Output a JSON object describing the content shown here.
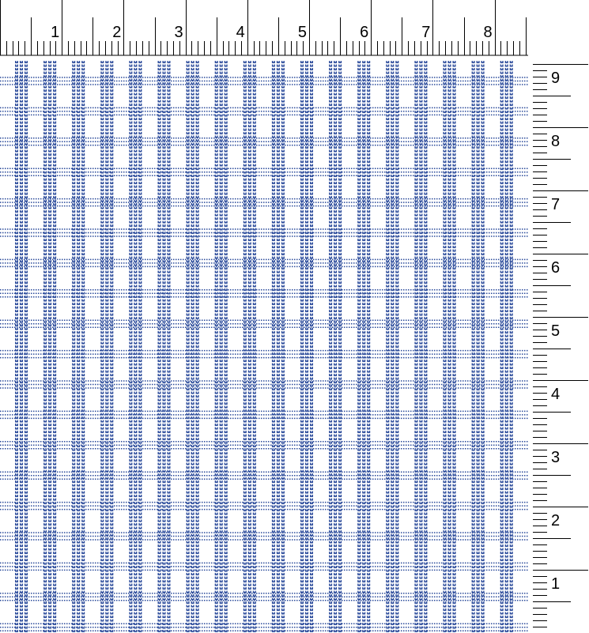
{
  "top_ruler": {
    "labels": [
      "1",
      "2",
      "3",
      "4",
      "5",
      "6",
      "7",
      "8"
    ]
  },
  "right_ruler": {
    "labels": [
      "9",
      "8",
      "7",
      "6",
      "5",
      "4",
      "3",
      "2",
      "1"
    ]
  },
  "pattern": {
    "stripe_color": "#2b4b9b",
    "background": "#ffffff",
    "threads_per_stripe": 3
  }
}
